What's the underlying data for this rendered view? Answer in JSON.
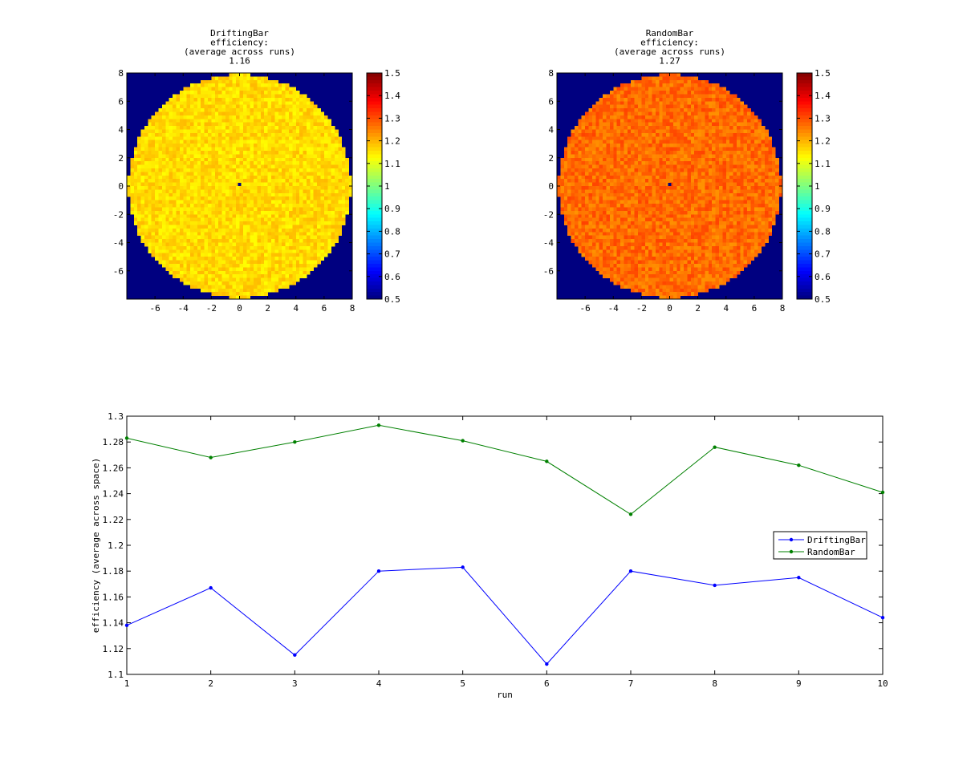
{
  "chart_data": [
    {
      "type": "heatmap",
      "title_lines": [
        "DriftingBar",
        "efficiency:",
        "(average across runs)",
        "1.16"
      ],
      "xlabel": "",
      "ylabel": "",
      "xlim": [
        -8,
        8
      ],
      "ylim": [
        -8,
        8
      ],
      "x_ticks": [
        -6,
        -4,
        -2,
        0,
        2,
        4,
        6,
        8
      ],
      "y_ticks": [
        -6,
        -4,
        -2,
        0,
        2,
        4,
        6,
        8
      ],
      "disk_radius": 7.9,
      "outside_value": 0.5,
      "center_value": 0.5,
      "mean_value": 1.16,
      "noise_range": 0.035,
      "colorbar": {
        "colormap": "jet",
        "range": [
          0.5,
          1.5
        ],
        "ticks": [
          "0.5",
          "0.6",
          "0.7",
          "0.8",
          "0.9",
          "1",
          "1.1",
          "1.2",
          "1.3",
          "1.4",
          "1.5"
        ]
      }
    },
    {
      "type": "heatmap",
      "title_lines": [
        "RandomBar",
        "efficiency:",
        "(average across runs)",
        "1.27"
      ],
      "xlabel": "",
      "ylabel": "",
      "xlim": [
        -8,
        8
      ],
      "ylim": [
        -8,
        8
      ],
      "x_ticks": [
        -6,
        -4,
        -2,
        0,
        2,
        4,
        6,
        8
      ],
      "y_ticks": [
        -6,
        -4,
        -2,
        0,
        2,
        4,
        6,
        8
      ],
      "disk_radius": 7.9,
      "outside_value": 0.5,
      "center_value": 0.5,
      "mean_value": 1.27,
      "noise_range": 0.04,
      "colorbar": {
        "colormap": "jet",
        "range": [
          0.5,
          1.5
        ],
        "ticks": [
          "0.5",
          "0.6",
          "0.7",
          "0.8",
          "0.9",
          "1",
          "1.1",
          "1.2",
          "1.3",
          "1.4",
          "1.5"
        ]
      }
    },
    {
      "type": "line",
      "title": "",
      "xlabel": "run",
      "ylabel": "efficiency (average across space)",
      "xlim": [
        1,
        10
      ],
      "ylim": [
        1.1,
        1.3
      ],
      "x": [
        1,
        2,
        3,
        4,
        5,
        6,
        7,
        8,
        9,
        10
      ],
      "x_ticks": [
        "1",
        "2",
        "3",
        "4",
        "5",
        "6",
        "7",
        "8",
        "9",
        "10"
      ],
      "y_ticks": [
        "1.1",
        "1.12",
        "1.14",
        "1.16",
        "1.18",
        "1.2",
        "1.22",
        "1.24",
        "1.26",
        "1.28",
        "1.3"
      ],
      "legend_position": "right",
      "grid": false,
      "series": [
        {
          "name": "DriftingBar",
          "color": "#0000ff",
          "marker": "dot",
          "values": [
            1.138,
            1.167,
            1.115,
            1.18,
            1.183,
            1.108,
            1.18,
            1.169,
            1.175,
            1.144
          ]
        },
        {
          "name": "RandomBar",
          "color": "#008000",
          "marker": "dot",
          "values": [
            1.283,
            1.268,
            1.28,
            1.293,
            1.281,
            1.265,
            1.224,
            1.276,
            1.262,
            1.241
          ]
        }
      ]
    }
  ]
}
